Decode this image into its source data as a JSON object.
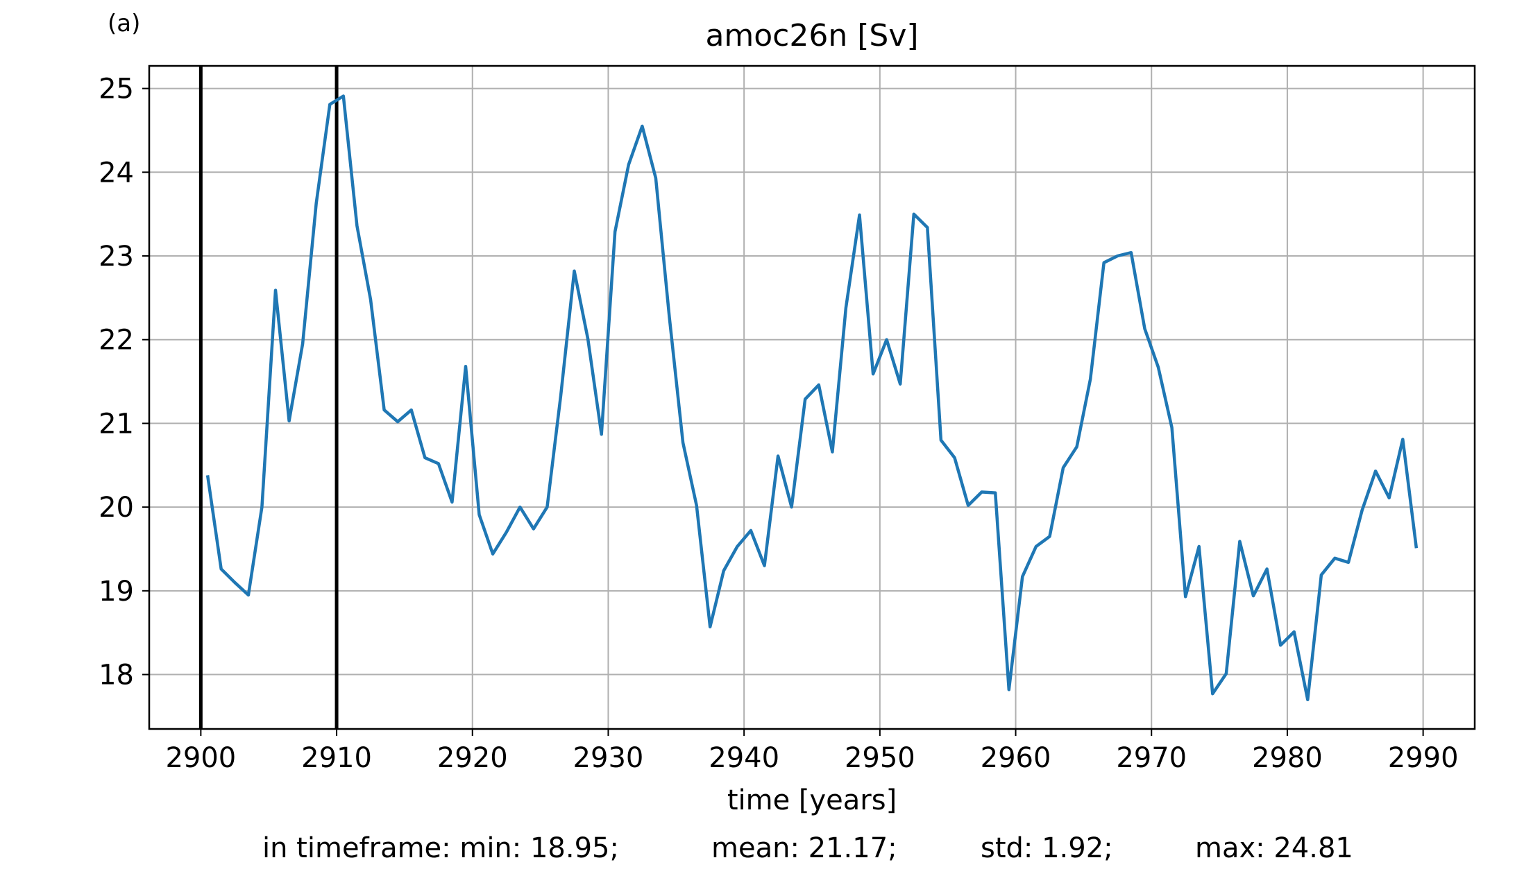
{
  "panel_label": "(a)",
  "stats": {
    "min": "in timeframe: min: 18.95;",
    "mean": "mean: 21.17;",
    "std": "std: 1.92;",
    "max": "max: 24.81"
  },
  "chart_data": {
    "type": "line",
    "title": "amoc26n [Sv]",
    "xlabel": "time [years]",
    "ylabel": "",
    "xlim": [
      2896.2,
      2993.8
    ],
    "ylim": [
      17.35,
      25.27
    ],
    "xticks": [
      2900,
      2910,
      2920,
      2930,
      2940,
      2950,
      2960,
      2970,
      2980,
      2990
    ],
    "yticks": [
      18,
      19,
      20,
      21,
      22,
      23,
      24,
      25
    ],
    "grid": true,
    "vlines": [
      2900,
      2910
    ],
    "line_color": "#1f77b4",
    "series": [
      {
        "x": [
          2900.5,
          2901.5,
          2902.5,
          2903.5,
          2904.5,
          2905.5,
          2906.5,
          2907.5,
          2908.5,
          2909.5,
          2910.5,
          2911.5,
          2912.5,
          2913.5,
          2914.5,
          2915.5,
          2916.5,
          2917.5,
          2918.5,
          2919.5,
          2920.5,
          2921.5,
          2922.5,
          2923.5,
          2924.5,
          2925.5,
          2926.5,
          2927.5,
          2928.5,
          2929.5,
          2930.5,
          2931.5,
          2932.5,
          2933.5,
          2934.5,
          2935.5,
          2936.5,
          2937.5,
          2938.5,
          2939.5,
          2940.5,
          2941.5,
          2942.5,
          2943.5,
          2944.5,
          2945.5,
          2946.5,
          2947.5,
          2948.5,
          2949.5,
          2950.5,
          2951.5,
          2952.5,
          2953.5,
          2954.5,
          2955.5,
          2956.5,
          2957.5,
          2958.5,
          2959.5,
          2960.5,
          2961.5,
          2962.5,
          2963.5,
          2964.5,
          2965.5,
          2966.5,
          2967.5,
          2968.5,
          2969.5,
          2970.5,
          2971.5,
          2972.5,
          2973.5,
          2974.5,
          2975.5,
          2976.5,
          2977.5,
          2978.5,
          2979.5,
          2980.5,
          2981.5,
          2982.5,
          2983.5,
          2984.5,
          2985.5,
          2986.5,
          2987.5,
          2988.5,
          2989.5
        ],
        "values": [
          20.38,
          19.26,
          19.1,
          18.95,
          20.0,
          22.59,
          21.03,
          21.95,
          23.63,
          24.81,
          24.91,
          23.36,
          22.48,
          21.16,
          21.02,
          21.16,
          20.59,
          20.52,
          20.06,
          21.68,
          19.91,
          19.44,
          19.7,
          20.0,
          19.74,
          20.0,
          21.33,
          22.82,
          22.01,
          20.87,
          23.29,
          24.09,
          24.55,
          23.93,
          22.27,
          20.77,
          20.02,
          18.57,
          19.24,
          19.53,
          19.72,
          19.3,
          20.61,
          20.0,
          21.29,
          21.46,
          20.66,
          22.38,
          23.49,
          21.59,
          22.0,
          21.47,
          23.5,
          23.34,
          20.8,
          20.59,
          20.02,
          20.18,
          20.17,
          17.82,
          19.17,
          19.53,
          19.65,
          20.47,
          20.72,
          21.53,
          22.92,
          23.0,
          23.04,
          22.13,
          21.67,
          20.95,
          18.93,
          19.53,
          17.77,
          18.01,
          19.59,
          18.94,
          19.26,
          18.35,
          18.51,
          17.7,
          19.19,
          19.39,
          19.34,
          19.96,
          20.43,
          20.11,
          20.81,
          19.51
        ]
      }
    ]
  }
}
